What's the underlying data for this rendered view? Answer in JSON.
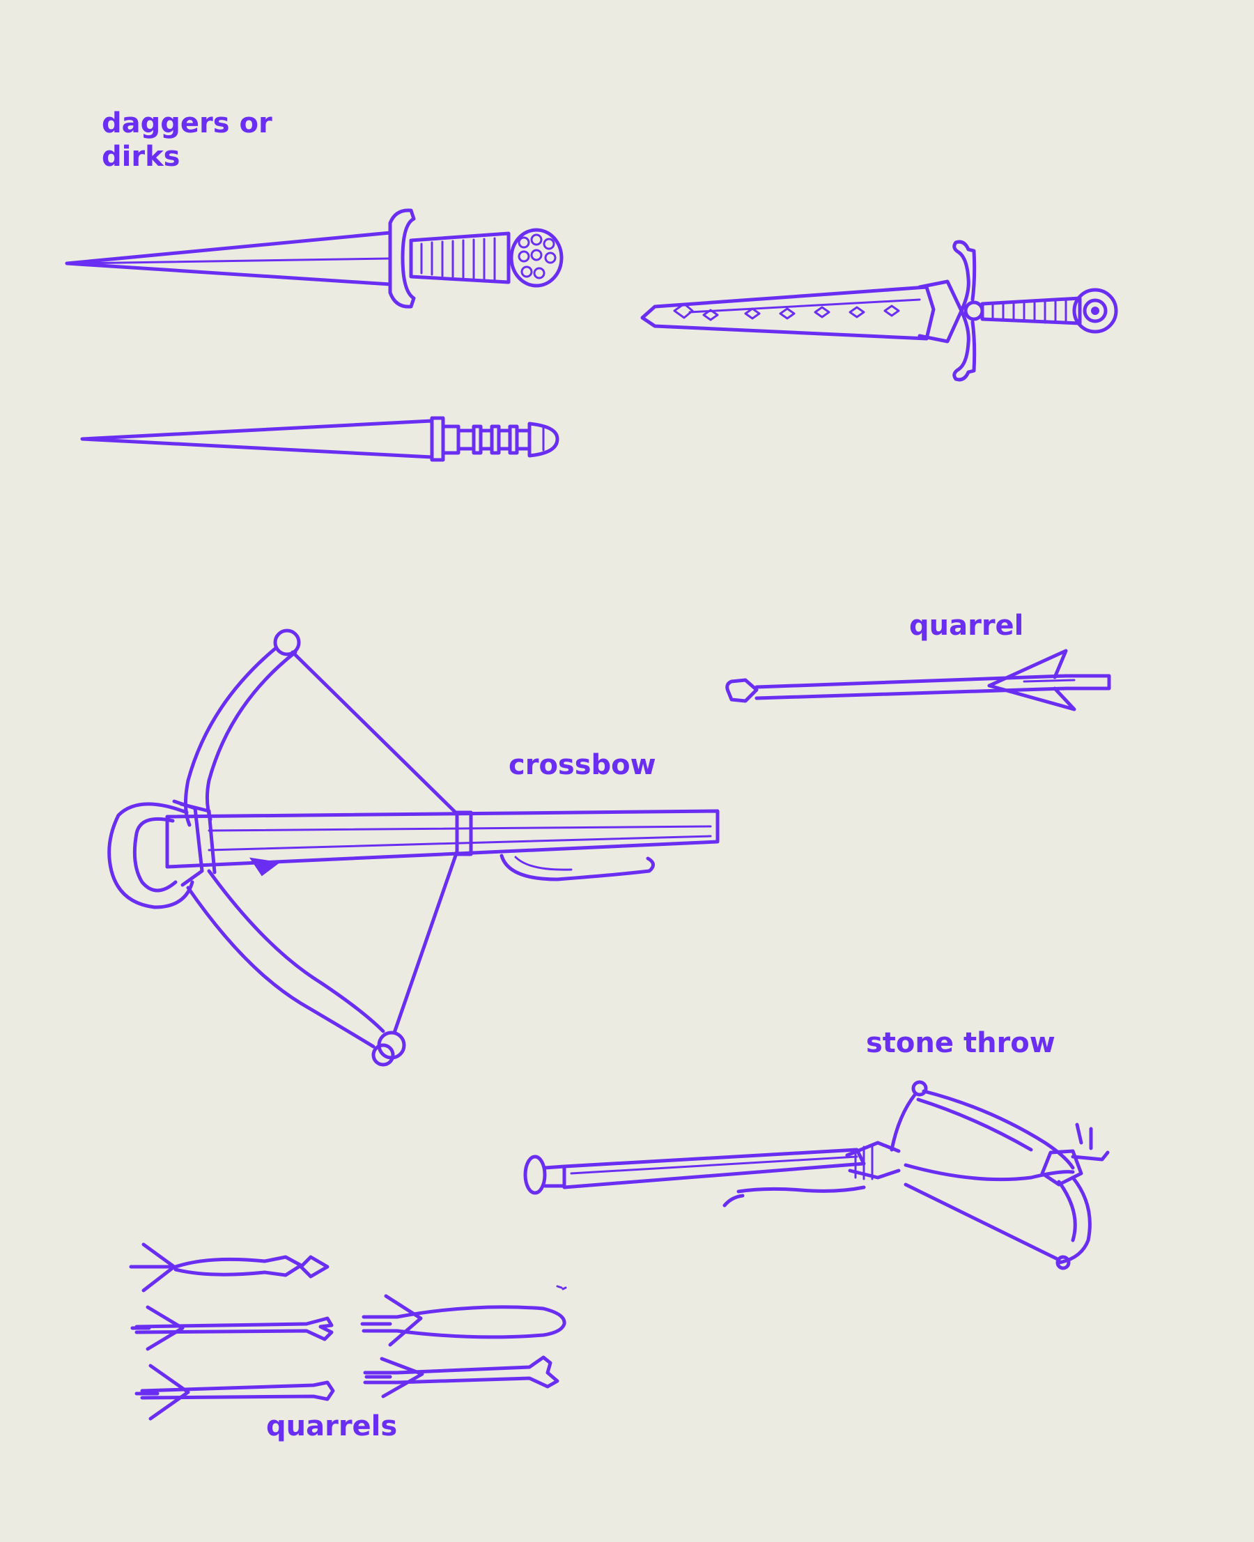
{
  "colors": {
    "ink": "#6a2ef2",
    "paper": "#ecebe2"
  },
  "labels": {
    "daggers_line1": "daggers or",
    "daggers_line2": "dirks",
    "quarrel": "quarrel",
    "crossbow": "crossbow",
    "stone_throw": "stone throw",
    "quarrels": "quarrels"
  },
  "illustrations": {
    "dagger_top": "dagger with ribbed grip",
    "dagger_right": "dagger with ring pommel",
    "dagger_bottom": "dagger with banded grip",
    "crossbow": "crossbow",
    "quarrel_single": "quarrel",
    "stone_throw": "stone throw",
    "quarrels_group": "quarrels"
  }
}
